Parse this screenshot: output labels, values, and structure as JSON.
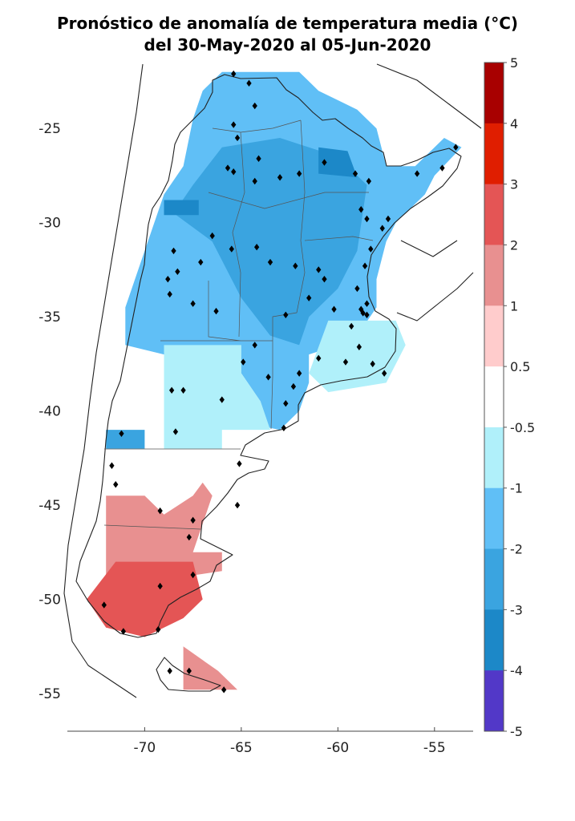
{
  "title": {
    "line1": "Pronóstico de anomalía de temperatura media (°C)",
    "line2": "del 30-May-2020 al 05-Jun-2020"
  },
  "map": {
    "lon_range": [
      -74,
      -53
    ],
    "lat_range": [
      -57,
      -21.5
    ],
    "lon_ticks": [
      -70,
      -65,
      -60,
      -55
    ],
    "lon_tick_labels": [
      "-70",
      "-65",
      "-60",
      "-55"
    ],
    "lat_ticks": [
      -25,
      -30,
      -35,
      -40,
      -45,
      -50,
      -55
    ],
    "lat_tick_labels": [
      "-25",
      "-30",
      "-35",
      "-40",
      "-45",
      "-50",
      "-55"
    ],
    "grid": false
  },
  "colorbar": {
    "labels": [
      "5",
      "4",
      "3",
      "2",
      "1",
      "0.5",
      "-0.5",
      "-1",
      "-2",
      "-3",
      "-4",
      "-5"
    ],
    "bins": [
      {
        "from": 4,
        "to": 5,
        "color": "#a80000"
      },
      {
        "from": 3,
        "to": 4,
        "color": "#e01e00"
      },
      {
        "from": 2,
        "to": 3,
        "color": "#e45555"
      },
      {
        "from": 1,
        "to": 2,
        "color": "#e89090"
      },
      {
        "from": 0.5,
        "to": 1,
        "color": "#ffcccc"
      },
      {
        "from": -0.5,
        "to": 0.5,
        "color": "#ffffff"
      },
      {
        "from": -1,
        "to": -0.5,
        "color": "#b0f0fa"
      },
      {
        "from": -2,
        "to": -1,
        "color": "#60bff6"
      },
      {
        "from": -3,
        "to": -2,
        "color": "#3aa4e0"
      },
      {
        "from": -4,
        "to": -3,
        "color": "#1c88c8"
      },
      {
        "from": -5,
        "to": -4,
        "color": "#5238c8"
      }
    ]
  },
  "anomaly_regions": [
    {
      "category": "-1 to -2",
      "color": "#60bff6",
      "polygon": [
        [
          -66,
          -22
        ],
        [
          -62,
          -22
        ],
        [
          -61,
          -23
        ],
        [
          -59,
          -24
        ],
        [
          -58,
          -25
        ],
        [
          -57.5,
          -27
        ],
        [
          -56,
          -27
        ],
        [
          -54.5,
          -25.5
        ],
        [
          -53.6,
          -26
        ],
        [
          -55,
          -27.5
        ],
        [
          -55.5,
          -28.5
        ],
        [
          -57,
          -30
        ],
        [
          -57.5,
          -31
        ],
        [
          -58,
          -33
        ],
        [
          -58,
          -34.5
        ],
        [
          -59,
          -36
        ],
        [
          -60,
          -36.5
        ],
        [
          -61.5,
          -37
        ],
        [
          -61.5,
          -38.5
        ],
        [
          -62,
          -40
        ],
        [
          -63,
          -41
        ],
        [
          -64,
          -40.8
        ],
        [
          -64,
          -39.5
        ],
        [
          -65,
          -38
        ],
        [
          -66.5,
          -38
        ],
        [
          -67,
          -37
        ],
        [
          -69,
          -37
        ],
        [
          -71,
          -36.5
        ],
        [
          -71,
          -34.5
        ],
        [
          -70.5,
          -33
        ],
        [
          -70,
          -31.5
        ],
        [
          -69.5,
          -30
        ],
        [
          -69,
          -28.5
        ],
        [
          -68,
          -27
        ],
        [
          -67.5,
          -24.5
        ],
        [
          -67,
          -23
        ]
      ]
    },
    {
      "category": "-2 to -3",
      "color": "#3aa4e0",
      "polygon": [
        [
          -66,
          -26
        ],
        [
          -63,
          -25.5
        ],
        [
          -60,
          -26.5
        ],
        [
          -58.5,
          -28
        ],
        [
          -59,
          -31.5
        ],
        [
          -60,
          -33.5
        ],
        [
          -61.5,
          -35
        ],
        [
          -62,
          -36.5
        ],
        [
          -63.5,
          -36
        ],
        [
          -65,
          -34
        ],
        [
          -66.5,
          -31
        ],
        [
          -68.5,
          -29.5
        ],
        [
          -67.5,
          -28
        ]
      ]
    },
    {
      "category": "-3 to -4",
      "color": "#1c88c8",
      "polygon": [
        [
          -61,
          -26
        ],
        [
          -59.5,
          -26.2
        ],
        [
          -59,
          -27.6
        ],
        [
          -61,
          -27.4
        ]
      ]
    },
    {
      "category": "-3 to -4",
      "color": "#1c88c8",
      "polygon": [
        [
          -69,
          -28.8
        ],
        [
          -67.2,
          -28.8
        ],
        [
          -67.2,
          -29.6
        ],
        [
          -69,
          -29.6
        ]
      ]
    },
    {
      "category": "-0.5 to -1",
      "color": "#b0f0fa",
      "polygon": [
        [
          -69,
          -36.5
        ],
        [
          -65,
          -36.5
        ],
        [
          -65,
          -38
        ],
        [
          -64,
          -39.5
        ],
        [
          -63.5,
          -41
        ],
        [
          -66,
          -41
        ],
        [
          -66,
          -42
        ],
        [
          -69,
          -42
        ],
        [
          -69,
          -39
        ]
      ]
    },
    {
      "category": "-0.5 to -1",
      "color": "#b0f0fa",
      "polygon": [
        [
          -60.5,
          -35.2
        ],
        [
          -57,
          -35.2
        ],
        [
          -56.5,
          -36.5
        ],
        [
          -57.5,
          -38.5
        ],
        [
          -60.5,
          -39
        ],
        [
          -61.5,
          -38
        ]
      ]
    },
    {
      "category": "-2 to -3",
      "color": "#3aa4e0",
      "polygon": [
        [
          -72,
          -41
        ],
        [
          -70,
          -41
        ],
        [
          -70,
          -42
        ],
        [
          -72,
          -42
        ]
      ]
    },
    {
      "category": "1 to 2",
      "color": "#e89090",
      "polygon": [
        [
          -72,
          -44.5
        ],
        [
          -70,
          -44.5
        ],
        [
          -69,
          -45.5
        ],
        [
          -67.5,
          -44.5
        ],
        [
          -67,
          -43.8
        ],
        [
          -66.5,
          -44.5
        ],
        [
          -67.5,
          -47.5
        ],
        [
          -66,
          -47.5
        ],
        [
          -66,
          -48.5
        ],
        [
          -68,
          -48.8
        ],
        [
          -72,
          -48.8
        ]
      ]
    },
    {
      "category": "1 to 2",
      "color": "#e89090",
      "polygon": [
        [
          -68,
          -52.5
        ],
        [
          -66.2,
          -53.8
        ],
        [
          -65.2,
          -54.8
        ],
        [
          -68,
          -54.8
        ]
      ]
    },
    {
      "category": "2 to 3",
      "color": "#e45555",
      "polygon": [
        [
          -71.5,
          -48
        ],
        [
          -67.5,
          -48
        ],
        [
          -67,
          -50
        ],
        [
          -68,
          -51
        ],
        [
          -69,
          -51.5
        ],
        [
          -70,
          -52
        ],
        [
          -72,
          -51.5
        ],
        [
          -73,
          -50
        ]
      ]
    }
  ],
  "stations": [
    [
      -65.4,
      -22.1
    ],
    [
      -64.6,
      -22.6
    ],
    [
      -64.3,
      -23.8
    ],
    [
      -65.4,
      -24.8
    ],
    [
      -65.2,
      -25.5
    ],
    [
      -64.1,
      -26.6
    ],
    [
      -65.7,
      -27.1
    ],
    [
      -65.4,
      -27.3
    ],
    [
      -64.3,
      -27.8
    ],
    [
      -63,
      -27.6
    ],
    [
      -62,
      -27.4
    ],
    [
      -60.7,
      -26.8
    ],
    [
      -59.1,
      -27.4
    ],
    [
      -58.4,
      -27.8
    ],
    [
      -55.9,
      -27.4
    ],
    [
      -54.6,
      -27.1
    ],
    [
      -53.9,
      -26
    ],
    [
      -58.8,
      -29.3
    ],
    [
      -58.5,
      -29.8
    ],
    [
      -57.4,
      -29.8
    ],
    [
      -57.7,
      -30.3
    ],
    [
      -58.3,
      -31.4
    ],
    [
      -58.6,
      -32.3
    ],
    [
      -59,
      -33.5
    ],
    [
      -58.5,
      -34.3
    ],
    [
      -58.8,
      -34.6
    ],
    [
      -58.7,
      -34.8
    ],
    [
      -58.5,
      -34.9
    ],
    [
      -59.3,
      -35.5
    ],
    [
      -58.9,
      -36.6
    ],
    [
      -58.2,
      -37.5
    ],
    [
      -57.6,
      -38
    ],
    [
      -59.6,
      -37.4
    ],
    [
      -61,
      -37.2
    ],
    [
      -62.3,
      -38.7
    ],
    [
      -62.7,
      -39.6
    ],
    [
      -62.8,
      -40.9
    ],
    [
      -64.3,
      -36.5
    ],
    [
      -64.9,
      -37.4
    ],
    [
      -66.3,
      -34.7
    ],
    [
      -67.5,
      -34.3
    ],
    [
      -68.8,
      -33
    ],
    [
      -68.3,
      -32.6
    ],
    [
      -68.7,
      -33.8
    ],
    [
      -68.5,
      -31.5
    ],
    [
      -67.1,
      -32.1
    ],
    [
      -66.5,
      -30.7
    ],
    [
      -65.5,
      -31.4
    ],
    [
      -64.2,
      -31.3
    ],
    [
      -63.5,
      -32.1
    ],
    [
      -62.2,
      -32.3
    ],
    [
      -61,
      -32.5
    ],
    [
      -60.7,
      -33
    ],
    [
      -61.5,
      -34
    ],
    [
      -60.2,
      -34.6
    ],
    [
      -62.7,
      -34.9
    ],
    [
      -68.6,
      -38.9
    ],
    [
      -68,
      -38.9
    ],
    [
      -68.4,
      -41.1
    ],
    [
      -71.2,
      -41.2
    ],
    [
      -71.7,
      -42.9
    ],
    [
      -71.5,
      -43.9
    ],
    [
      -69.2,
      -45.3
    ],
    [
      -67.5,
      -45.8
    ],
    [
      -67.5,
      -48.7
    ],
    [
      -69.2,
      -49.3
    ],
    [
      -72.1,
      -50.3
    ],
    [
      -71.1,
      -51.7
    ],
    [
      -69.3,
      -51.6
    ],
    [
      -68.7,
      -53.8
    ],
    [
      -67.7,
      -53.8
    ],
    [
      -65.9,
      -54.8
    ],
    [
      -66,
      -39.4
    ],
    [
      -65.1,
      -42.8
    ],
    [
      -65.2,
      -45
    ],
    [
      -67.7,
      -46.7
    ],
    [
      -63.6,
      -38.2
    ],
    [
      -62,
      -38
    ]
  ]
}
